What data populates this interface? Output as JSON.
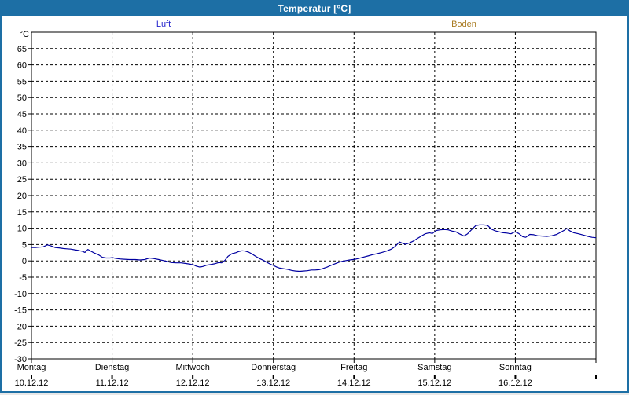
{
  "window": {
    "title": "Temperatur [°C]",
    "titlebar_color": "#1d6fa5",
    "background_color": "#ffffff"
  },
  "legend": {
    "items": [
      {
        "label": "Luft",
        "color": "#2323cc"
      },
      {
        "label": "Boden",
        "color": "#a8791e"
      }
    ]
  },
  "chart_data": {
    "type": "line",
    "title": "Temperatur [°C]",
    "ylabel": "°C",
    "ylim": [
      -30,
      70
    ],
    "ytick_step": 5,
    "ytick_label_min": -30,
    "ytick_label_max": 65,
    "grid": "dashed",
    "xlim_hours": [
      0,
      168
    ],
    "x_day_width_hours": 24,
    "x_days": [
      {
        "name": "Montag",
        "date": "10.12.12"
      },
      {
        "name": "Dienstag",
        "date": "11.12.12"
      },
      {
        "name": "Mittwoch",
        "date": "12.12.12"
      },
      {
        "name": "Donnerstag",
        "date": "13.12.12"
      },
      {
        "name": "Freitag",
        "date": "14.12.12"
      },
      {
        "name": "Samstag",
        "date": "15.12.12"
      },
      {
        "name": "Sonntag",
        "date": "16.12.12"
      }
    ],
    "series": [
      {
        "name": "Luft",
        "color": "#0000a0",
        "points": [
          [
            0,
            4.1
          ],
          [
            1.2,
            4.1
          ],
          [
            2.3,
            4.2
          ],
          [
            3.5,
            4.3
          ],
          [
            4.7,
            4.9
          ],
          [
            5.8,
            4.6
          ],
          [
            7,
            4.1
          ],
          [
            8.2,
            4.0
          ],
          [
            9.4,
            3.8
          ],
          [
            10.5,
            3.7
          ],
          [
            11.7,
            3.6
          ],
          [
            12.9,
            3.4
          ],
          [
            14,
            3.2
          ],
          [
            15.2,
            2.9
          ],
          [
            15.9,
            2.6
          ],
          [
            16.8,
            3.5
          ],
          [
            17.8,
            2.9
          ],
          [
            18.7,
            2.4
          ],
          [
            19.9,
            1.9
          ],
          [
            21.1,
            1.1
          ],
          [
            22.2,
            0.9
          ],
          [
            23.4,
            0.9
          ],
          [
            24.1,
            1.0
          ],
          [
            25,
            0.8
          ],
          [
            26.2,
            0.6
          ],
          [
            27.6,
            0.5
          ],
          [
            29.2,
            0.4
          ],
          [
            30.9,
            0.4
          ],
          [
            32.3,
            0.3
          ],
          [
            33.7,
            0.4
          ],
          [
            35.1,
            0.9
          ],
          [
            36.5,
            0.7
          ],
          [
            37.9,
            0.4
          ],
          [
            39.3,
            0.1
          ],
          [
            40.5,
            -0.2
          ],
          [
            41.6,
            -0.5
          ],
          [
            43,
            -0.6
          ],
          [
            44.5,
            -0.6
          ],
          [
            45.9,
            -0.8
          ],
          [
            47.3,
            -1.0
          ],
          [
            48.2,
            -1.2
          ],
          [
            49.1,
            -1.6
          ],
          [
            50.1,
            -1.9
          ],
          [
            51,
            -1.7
          ],
          [
            52.2,
            -1.3
          ],
          [
            53.3,
            -1.1
          ],
          [
            54.5,
            -0.9
          ],
          [
            55.7,
            -0.5
          ],
          [
            56.6,
            -0.6
          ],
          [
            57.6,
            0.2
          ],
          [
            58.5,
            1.4
          ],
          [
            59.7,
            2.2
          ],
          [
            60.8,
            2.5
          ],
          [
            61.8,
            2.9
          ],
          [
            62.7,
            3.1
          ],
          [
            63.6,
            3.0
          ],
          [
            64.6,
            2.7
          ],
          [
            65.5,
            2.2
          ],
          [
            66.7,
            1.4
          ],
          [
            67.9,
            0.7
          ],
          [
            69,
            0.2
          ],
          [
            70.2,
            -0.5
          ],
          [
            71.1,
            -1.0
          ],
          [
            72,
            -1.4
          ],
          [
            73,
            -1.9
          ],
          [
            73.9,
            -2.2
          ],
          [
            75.1,
            -2.4
          ],
          [
            76.3,
            -2.6
          ],
          [
            77.4,
            -2.9
          ],
          [
            78.6,
            -3.1
          ],
          [
            79.8,
            -3.2
          ],
          [
            80.9,
            -3.1
          ],
          [
            82.1,
            -3.0
          ],
          [
            83.3,
            -2.8
          ],
          [
            84.4,
            -2.8
          ],
          [
            85.6,
            -2.7
          ],
          [
            86.8,
            -2.3
          ],
          [
            88,
            -1.9
          ],
          [
            89.1,
            -1.4
          ],
          [
            90.3,
            -0.9
          ],
          [
            91.5,
            -0.4
          ],
          [
            92.6,
            -0.1
          ],
          [
            93.6,
            0.1
          ],
          [
            94.7,
            0.3
          ],
          [
            96.4,
            0.5
          ],
          [
            97.5,
            0.8
          ],
          [
            98.7,
            1.1
          ],
          [
            100.1,
            1.5
          ],
          [
            101.5,
            1.9
          ],
          [
            102.9,
            2.2
          ],
          [
            104.3,
            2.6
          ],
          [
            105.7,
            3.0
          ],
          [
            107.1,
            3.6
          ],
          [
            108.3,
            4.5
          ],
          [
            109.5,
            5.8
          ],
          [
            110.4,
            5.4
          ],
          [
            111.3,
            5.1
          ],
          [
            112.5,
            5.5
          ],
          [
            113.7,
            6.1
          ],
          [
            114.9,
            6.9
          ],
          [
            116,
            7.6
          ],
          [
            117.2,
            8.3
          ],
          [
            118.4,
            8.6
          ],
          [
            119.3,
            8.4
          ],
          [
            120.5,
            9.3
          ],
          [
            121.6,
            9.5
          ],
          [
            122.8,
            9.6
          ],
          [
            124,
            9.5
          ],
          [
            125.2,
            9.1
          ],
          [
            126.3,
            8.9
          ],
          [
            127.5,
            8.2
          ],
          [
            128.7,
            7.6
          ],
          [
            129.8,
            8.3
          ],
          [
            131,
            9.6
          ],
          [
            132.2,
            10.8
          ],
          [
            133.3,
            11.0
          ],
          [
            134.5,
            11.0
          ],
          [
            135.7,
            10.9
          ],
          [
            136.9,
            9.7
          ],
          [
            138,
            9.2
          ],
          [
            139.2,
            8.9
          ],
          [
            140.4,
            8.6
          ],
          [
            141.5,
            8.5
          ],
          [
            142.7,
            8.3
          ],
          [
            143.9,
            8.9
          ],
          [
            145,
            8.4
          ],
          [
            146.2,
            7.4
          ],
          [
            147.1,
            7.2
          ],
          [
            148.3,
            8.1
          ],
          [
            149.5,
            8.0
          ],
          [
            150.6,
            7.7
          ],
          [
            152,
            7.6
          ],
          [
            153.4,
            7.5
          ],
          [
            154.9,
            7.7
          ],
          [
            156.3,
            8.1
          ],
          [
            157.4,
            8.7
          ],
          [
            158.6,
            9.4
          ],
          [
            159.3,
            9.9
          ],
          [
            160.2,
            9.2
          ],
          [
            161.4,
            8.6
          ],
          [
            162.8,
            8.3
          ],
          [
            164.2,
            7.9
          ],
          [
            165.6,
            7.5
          ],
          [
            166.8,
            7.2
          ],
          [
            168,
            7.1
          ]
        ]
      },
      {
        "name": "Boden",
        "color": "#a8791e",
        "points": []
      }
    ]
  }
}
